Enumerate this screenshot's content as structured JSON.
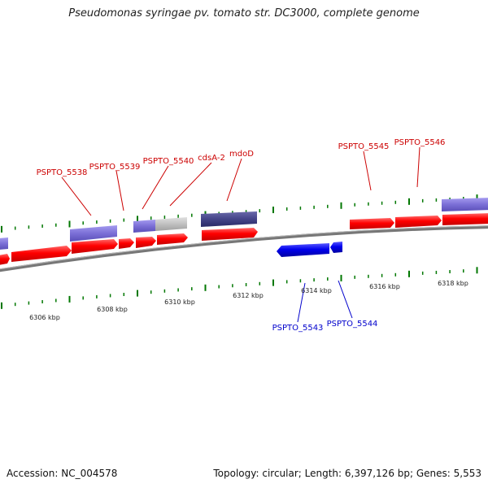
{
  "title": "Pseudomonas syringae pv. tomato str. DC3000, complete genome",
  "footer": {
    "accession": "Accession: NC_004578",
    "summary": "Topology: circular; Length: 6,397,126 bp; Genes: 5,553"
  },
  "kbp_labels": [
    "6306 kbp",
    "6308 kbp",
    "6310 kbp",
    "6312 kbp",
    "6314 kbp",
    "6316 kbp",
    "6318 kbp"
  ],
  "gene_labels_top": [
    "PSPTO_5538",
    "PSPTO_5539",
    "PSPTO_5540",
    "cdsA-2",
    "mdoD",
    "PSPTO_5545",
    "PSPTO_5546"
  ],
  "gene_labels_bottom": [
    "PSPTO_5543",
    "PSPTO_5544"
  ],
  "colors": {
    "forward_gene": "#ff0000",
    "reverse_gene": "#0000ee",
    "rna_light": "#7b6fd6",
    "rna_dark": "#444488",
    "pseudogene": "#c0c0c0",
    "tick": "#007700",
    "backbone": "#777777"
  }
}
